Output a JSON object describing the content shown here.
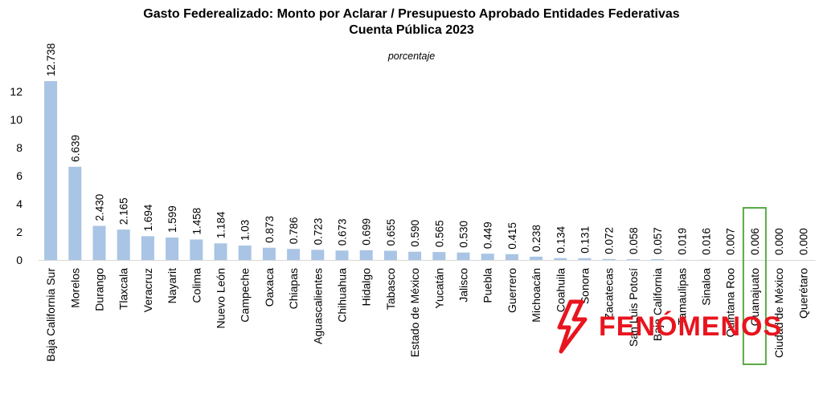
{
  "chart_data": {
    "type": "bar",
    "title": "Gasto Federealizado: Monto por Aclarar / Presupuesto Aprobado Entidades Federativas",
    "title_line2": "Cuenta Pública 2023",
    "subtitle": "porcentaje",
    "xlabel": "",
    "ylabel": "",
    "ylim": [
      0,
      12
    ],
    "yticks": [
      0,
      2,
      4,
      6,
      8,
      10,
      12
    ],
    "grid": false,
    "bar_color": "#a9c4e4",
    "highlight_color": "#5aaa46",
    "highlight_category": "Guanajuato",
    "categories": [
      "Baja California Sur",
      "Morelos",
      "Durango",
      "Tlaxcala",
      "Veracruz",
      "Nayarit",
      "Colima",
      "Nuevo León",
      "Campeche",
      "Oaxaca",
      "Chiapas",
      "Aguascalientes",
      "Chihuahua",
      "Hidalgo",
      "Tabasco",
      "Estado de México",
      "Yucatán",
      "Jalisco",
      "Puebla",
      "Guerrero",
      "Michoacán",
      "Coahuila",
      "Sonora",
      "Zacatecas",
      "San Luis Potosí",
      "Baja California",
      "Tamaulipas",
      "Sinaloa",
      "Quintana Roo",
      "Guanajuato",
      "Ciudad de México",
      "Querétaro"
    ],
    "values": [
      12.738,
      6.639,
      2.43,
      2.165,
      1.694,
      1.599,
      1.458,
      1.184,
      1.03,
      0.873,
      0.786,
      0.723,
      0.673,
      0.699,
      0.655,
      0.59,
      0.565,
      0.53,
      0.449,
      0.415,
      0.238,
      0.134,
      0.131,
      0.072,
      0.058,
      0.057,
      0.019,
      0.016,
      0.007,
      0.006,
      0.0,
      0.0
    ],
    "value_labels": [
      "12.738",
      "6.639",
      "2.430",
      "2.165",
      "1.694",
      "1.599",
      "1.458",
      "1.184",
      "1.03",
      "0.873",
      "0.786",
      "0.723",
      "0.673",
      "0.699",
      "0.655",
      "0.590",
      "0.565",
      "0.530",
      "0.449",
      "0.415",
      "0.238",
      "0.134",
      "0.131",
      "0.072",
      "0.058",
      "0.057",
      "0.019",
      "0.016",
      "0.007",
      "0.006",
      "0.000",
      "0.000"
    ]
  },
  "watermark": {
    "text": "FENÓMENOS",
    "color": "#e8141e",
    "icon": "lightning-bolt-icon"
  }
}
